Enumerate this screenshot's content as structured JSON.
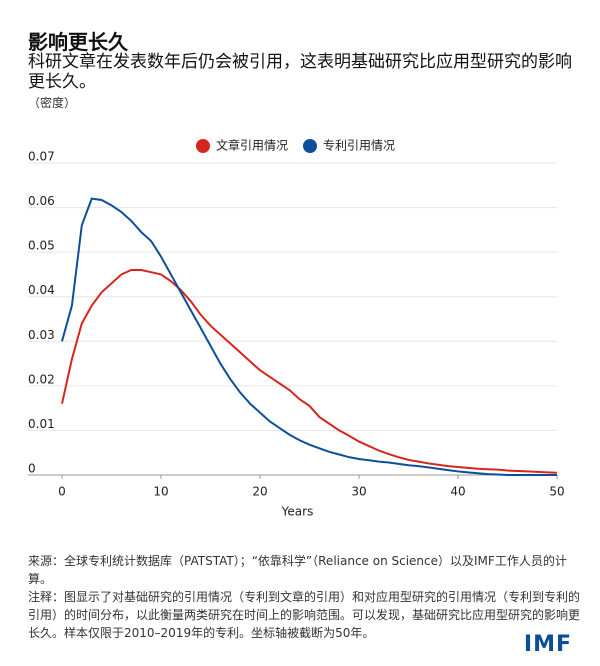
{
  "title": "影响更长久",
  "subtitle": "科研文章在发表数年后仍会被引用，这表明基础研究比应用型研究的影响更长久。",
  "chart_data": {
    "type": "line",
    "ylabel": "（密度）",
    "xlabel": "Years",
    "x": [
      0,
      1,
      2,
      3,
      4,
      5,
      6,
      7,
      8,
      9,
      10,
      11,
      12,
      13,
      14,
      15,
      16,
      17,
      18,
      19,
      20,
      21,
      22,
      23,
      24,
      25,
      26,
      27,
      28,
      29,
      30,
      31,
      32,
      33,
      34,
      35,
      36,
      37,
      38,
      39,
      40,
      41,
      42,
      43,
      44,
      45,
      46,
      47,
      48,
      49,
      50
    ],
    "series": [
      {
        "name": "文章引用情况",
        "color": "#d7261e",
        "values": [
          0.016,
          0.026,
          0.034,
          0.038,
          0.041,
          0.043,
          0.045,
          0.046,
          0.046,
          0.0455,
          0.045,
          0.0435,
          0.0415,
          0.039,
          0.036,
          0.0335,
          0.0315,
          0.0295,
          0.0275,
          0.0255,
          0.0235,
          0.022,
          0.0205,
          0.019,
          0.017,
          0.0155,
          0.013,
          0.0115,
          0.01,
          0.0088,
          0.0075,
          0.0065,
          0.0055,
          0.0047,
          0.004,
          0.0034,
          0.003,
          0.0026,
          0.0023,
          0.002,
          0.0018,
          0.0016,
          0.0014,
          0.0013,
          0.0012,
          0.001,
          0.0009,
          0.0008,
          0.0007,
          0.0006,
          0.0005
        ]
      },
      {
        "name": "专利引用情况",
        "color": "#0b4f9c",
        "values": [
          0.03,
          0.038,
          0.056,
          0.062,
          0.0617,
          0.0605,
          0.059,
          0.057,
          0.0545,
          0.0525,
          0.049,
          0.045,
          0.041,
          0.037,
          0.033,
          0.029,
          0.025,
          0.0215,
          0.0185,
          0.016,
          0.014,
          0.012,
          0.0105,
          0.009,
          0.0078,
          0.0068,
          0.006,
          0.0052,
          0.0046,
          0.004,
          0.0036,
          0.0033,
          0.003,
          0.0028,
          0.0025,
          0.0022,
          0.002,
          0.0017,
          0.0014,
          0.0011,
          0.0008,
          0.0006,
          0.0004,
          0.0002,
          0.0001,
          0,
          0,
          0,
          0,
          0,
          0
        ]
      }
    ],
    "xlim": [
      0,
      50
    ],
    "xticks": [
      0,
      10,
      20,
      30,
      40,
      50
    ],
    "ylim": [
      0,
      0.07
    ],
    "yticks": [
      0,
      0.01,
      0.02,
      0.03,
      0.04,
      0.05,
      0.06,
      0.07
    ],
    "grid": true,
    "legend": "top"
  },
  "source": "来源：全球专利统计数据库（PATSTAT）；“依靠科学”（Reliance on Science）以及IMF工作人员的计算。",
  "note": "注释：图显示了对基础研究的引用情况（专利到文章的引用）和对应用型研究的引用情况（专利到专利的引用）的时间分布，以此衡量两类研究在时间上的影响范围。可以发现，基础研究比应用型研究的影响更长久。样本仅限于2010–2019年的专利。坐标轴被截断为50年。",
  "logo": "IMF"
}
